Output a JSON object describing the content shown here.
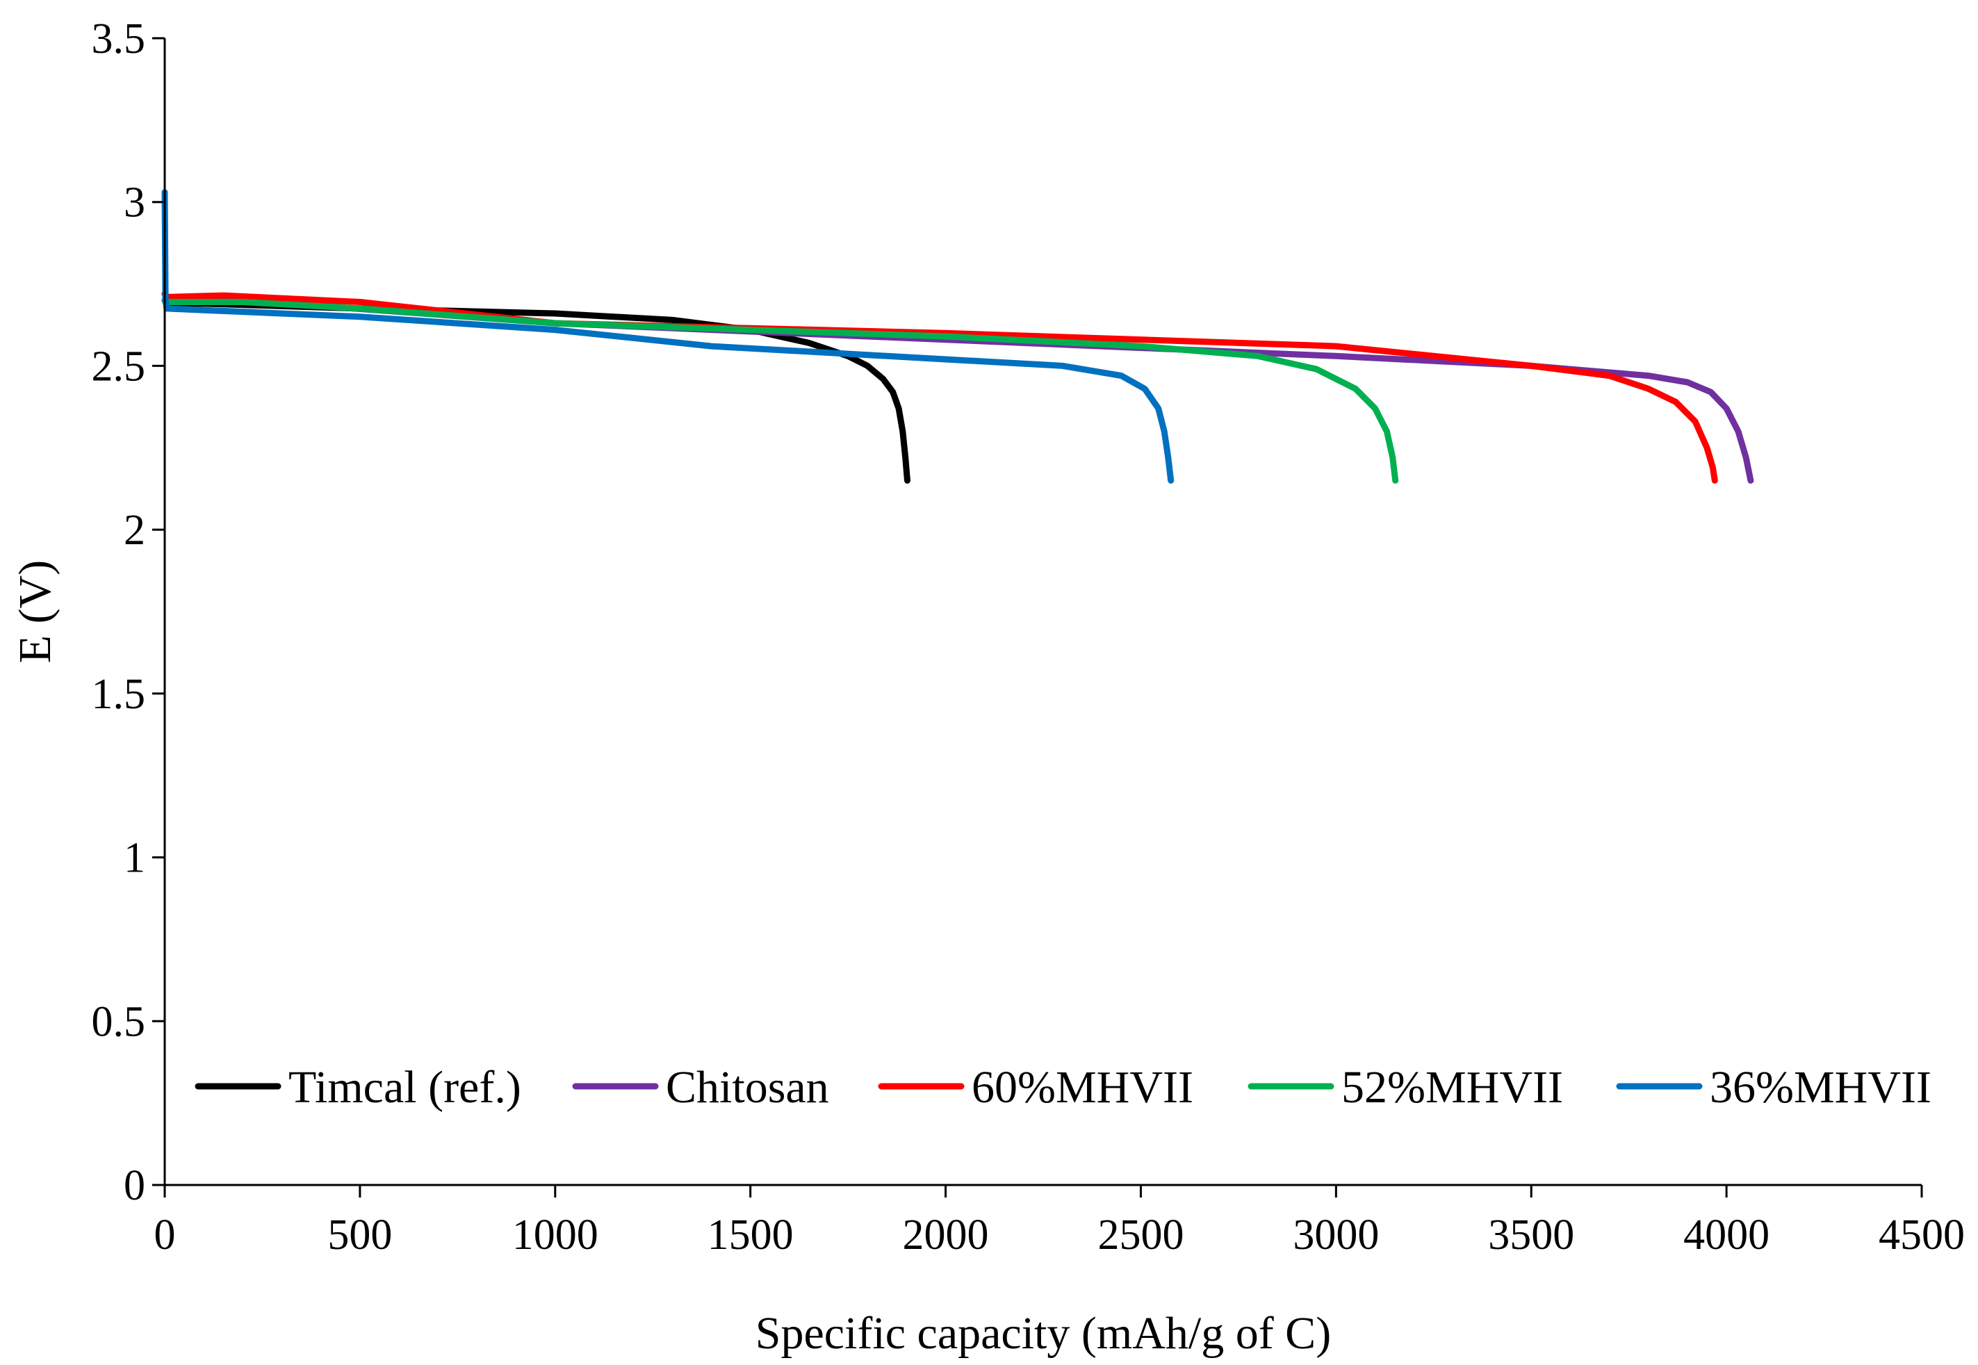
{
  "chart_data": {
    "type": "line",
    "title": "",
    "xlabel": "Specific capacity (mAh/g of C)",
    "ylabel": "E (V)",
    "xlim": [
      0,
      4500
    ],
    "ylim": [
      0,
      3.5
    ],
    "xticks": [
      0,
      500,
      1000,
      1500,
      2000,
      2500,
      3000,
      3500,
      4000,
      4500
    ],
    "yticks": [
      0,
      0.5,
      1,
      1.5,
      2,
      2.5,
      3,
      3.5
    ],
    "xtick_labels": [
      "0",
      "500",
      "1000",
      "1500",
      "2000",
      "2500",
      "3000",
      "3500",
      "4000",
      "4500"
    ],
    "ytick_labels": [
      "0",
      "0.5",
      "1",
      "1.5",
      "2",
      "2.5",
      "3",
      "3.5"
    ],
    "grid": false,
    "legend_position": "bottom",
    "series": [
      {
        "name": "Timcal (ref.)",
        "color": "#000000",
        "x": [
          0,
          5,
          100,
          500,
          1000,
          1300,
          1500,
          1650,
          1750,
          1800,
          1840,
          1865,
          1880,
          1890,
          1897,
          1902
        ],
        "y": [
          2.7,
          2.69,
          2.69,
          2.675,
          2.66,
          2.64,
          2.61,
          2.57,
          2.53,
          2.5,
          2.46,
          2.42,
          2.37,
          2.3,
          2.22,
          2.15
        ]
      },
      {
        "name": "Chitosan",
        "color": "#7030A0",
        "x": [
          0,
          5,
          200,
          1000,
          2000,
          3000,
          3500,
          3800,
          3900,
          3960,
          4000,
          4030,
          4050,
          4062
        ],
        "y": [
          2.72,
          2.7,
          2.7,
          2.63,
          2.58,
          2.53,
          2.5,
          2.47,
          2.45,
          2.42,
          2.37,
          2.3,
          2.22,
          2.15
        ]
      },
      {
        "name": "60%MHVII",
        "color": "#FF0000",
        "x": [
          0,
          5,
          150,
          500,
          1000,
          2000,
          3000,
          3500,
          3700,
          3800,
          3870,
          3920,
          3950,
          3965,
          3970
        ],
        "y": [
          2.72,
          2.71,
          2.715,
          2.695,
          2.63,
          2.6,
          2.56,
          2.5,
          2.47,
          2.43,
          2.39,
          2.33,
          2.25,
          2.19,
          2.15
        ]
      },
      {
        "name": "52%MHVII",
        "color": "#00B050",
        "x": [
          0,
          5,
          200,
          500,
          1000,
          1500,
          2000,
          2500,
          2800,
          2950,
          3050,
          3100,
          3130,
          3145,
          3152
        ],
        "y": [
          2.7,
          2.695,
          2.695,
          2.675,
          2.63,
          2.61,
          2.59,
          2.56,
          2.53,
          2.49,
          2.43,
          2.37,
          2.3,
          2.22,
          2.15
        ]
      },
      {
        "name": "36%MHVII",
        "color": "#0070C0",
        "x": [
          0,
          2,
          5,
          100,
          500,
          1000,
          1400,
          2000,
          2300,
          2450,
          2510,
          2545,
          2560,
          2570,
          2577
        ],
        "y": [
          3.03,
          2.7,
          2.675,
          2.67,
          2.65,
          2.61,
          2.56,
          2.52,
          2.5,
          2.47,
          2.43,
          2.37,
          2.3,
          2.22,
          2.15
        ]
      }
    ]
  }
}
